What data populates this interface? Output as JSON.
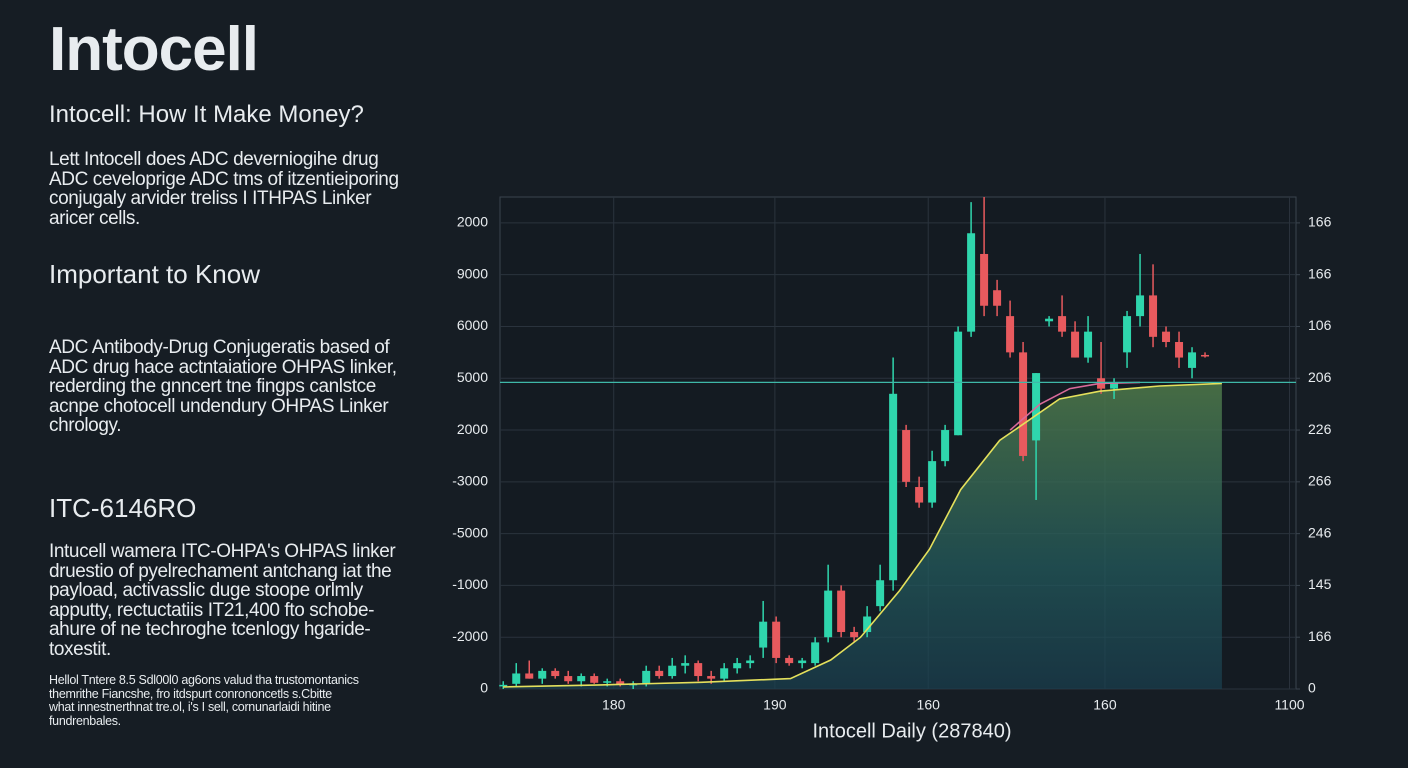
{
  "page": {
    "title": "Intocell",
    "subtitle": "Intocell: How  It Make Money?",
    "intro": [
      "Lett Intocell does ADC deverniogihe drug",
      "ADC ceveloprige ADC tms of itzentieiporing",
      "conjugaly arvider treliss I ITHPAS Linker",
      "aricer cells."
    ],
    "section1": {
      "heading": "Important to Know",
      "lines": [
        "ADC Antibody-Drug Conjugeratis based of",
        "ADC drug hace actntaiatiore OHPAS linker,",
        "rederding the gnncert tne fingps canlstce",
        "acnpe chotocell undendury OHPAS Linker",
        "chrology."
      ]
    },
    "section2": {
      "heading": "ITC-6146RO",
      "lines": [
        "Intucell wamera ITC-OHPA's OHPAS linker",
        "druestio of pyelrechament antchang iat the",
        "payload, activasslic duge stoope orlmly",
        "apputty, rectuctatiis IT21,400 fto schobe-",
        "ahure of ne techroghe tcenlogy hgaride-",
        "toxestit."
      ]
    },
    "footnote": [
      "Hellol Tntere 8.5 Sdl00l0 ag6ons valud tha trustomontanics",
      "themrithe Fiancshe, fro itdspurt conrononcetls s.Cbitte",
      "what innestnerthnat tre.ol, i's I sell, cornunarlaidi hitine",
      "fundrenbales."
    ]
  },
  "chart_data": {
    "type": "candlestick",
    "x_label": "Intocell Daily (287840)",
    "up_color": "#2fd6ad",
    "down_color": "#e85a5e",
    "x": [
      0,
      1,
      2,
      3,
      4,
      5,
      6,
      7,
      8,
      9,
      10,
      11,
      12,
      13,
      14,
      15,
      16,
      17,
      18,
      19,
      20,
      21,
      22,
      23,
      24,
      25,
      26,
      27,
      28,
      29,
      30,
      31,
      32,
      33,
      34,
      35,
      36,
      37,
      38,
      39,
      40,
      41,
      42,
      43,
      44,
      45,
      46,
      47,
      48,
      49,
      50,
      51,
      52,
      53,
      54
    ],
    "open": [
      0.05,
      0.1,
      0.3,
      0.2,
      0.35,
      0.25,
      0.15,
      0.25,
      0.12,
      0.15,
      0.08,
      0.1,
      0.35,
      0.25,
      0.45,
      0.5,
      0.25,
      0.2,
      0.4,
      0.5,
      0.8,
      1.3,
      0.6,
      0.5,
      0.5,
      1.0,
      1.9,
      1.1,
      1.1,
      1.6,
      2.1,
      5.0,
      3.9,
      3.6,
      4.4,
      4.9,
      6.9,
      8.4,
      7.7,
      7.2,
      6.5,
      4.8,
      7.1,
      7.2,
      6.9,
      6.4,
      6.0,
      5.8,
      6.5,
      7.2,
      7.6,
      6.9,
      6.7,
      6.2,
      6.45
    ],
    "high": [
      0.15,
      0.5,
      0.55,
      0.4,
      0.4,
      0.35,
      0.3,
      0.3,
      0.2,
      0.2,
      0.15,
      0.45,
      0.45,
      0.6,
      0.65,
      0.55,
      0.35,
      0.5,
      0.6,
      0.65,
      1.7,
      1.4,
      0.65,
      0.6,
      1.0,
      2.4,
      2.0,
      1.2,
      1.6,
      2.4,
      6.4,
      5.1,
      4.1,
      4.6,
      5.1,
      7.0,
      9.4,
      9.5,
      7.9,
      7.5,
      6.7,
      6.1,
      7.2,
      7.6,
      7.1,
      7.2,
      6.7,
      6.0,
      7.3,
      8.4,
      8.2,
      7.0,
      6.9,
      6.6,
      6.5
    ],
    "low": [
      0,
      0.05,
      0.2,
      0.1,
      0.2,
      0.1,
      0.05,
      0.1,
      0.05,
      0.05,
      0,
      0.05,
      0.2,
      0.2,
      0.3,
      0.15,
      0.1,
      0.15,
      0.3,
      0.4,
      0.6,
      0.5,
      0.45,
      0.4,
      0.45,
      0.9,
      1.0,
      0.9,
      1.0,
      1.5,
      1.9,
      3.9,
      3.5,
      3.5,
      4.3,
      4.9,
      6.8,
      7.2,
      7.2,
      6.4,
      4.4,
      3.65,
      7.0,
      6.8,
      6.4,
      6.3,
      5.7,
      5.6,
      6.2,
      7.0,
      6.6,
      6.6,
      6.2,
      6.0,
      6.4
    ],
    "close": [
      0.08,
      0.3,
      0.2,
      0.35,
      0.25,
      0.15,
      0.25,
      0.12,
      0.15,
      0.08,
      0.1,
      0.35,
      0.25,
      0.45,
      0.5,
      0.25,
      0.2,
      0.4,
      0.5,
      0.55,
      1.3,
      0.6,
      0.5,
      0.55,
      0.9,
      1.9,
      1.1,
      1.0,
      1.4,
      2.1,
      5.7,
      4.0,
      3.6,
      4.4,
      5.0,
      6.9,
      8.8,
      7.4,
      7.4,
      6.5,
      4.5,
      6.1,
      7.15,
      6.9,
      6.4,
      6.9,
      5.8,
      5.9,
      7.2,
      7.6,
      6.8,
      6.7,
      6.4,
      6.5,
      6.42
    ],
    "lines": [
      {
        "color": "#e4e05c",
        "area": true,
        "x": [
          0,
          7.5,
          15.2,
          22.1,
          25.2,
          27.5,
          30.5,
          32.8,
          35.2,
          38.2,
          40.5,
          42.8,
          45.9,
          50.5,
          55.3
        ],
        "values": [
          0.04,
          0.08,
          0.13,
          0.2,
          0.56,
          1.0,
          1.9,
          2.7,
          3.85,
          4.8,
          5.2,
          5.6,
          5.75,
          5.85,
          5.9
        ]
      },
      {
        "color": "#d96a9a",
        "area": false,
        "x": [
          39,
          41.3,
          43.6,
          45.9,
          49
        ],
        "values": [
          5.0,
          5.5,
          5.8,
          5.9,
          5.92
        ]
      }
    ],
    "hline": 5.92,
    "hline_color": "#3fb8a8",
    "grid": true,
    "xlim": [
      -0.25,
      61
    ],
    "xticks": [
      {
        "value": 8.5,
        "label": "180"
      },
      {
        "value": 20.9,
        "label": "190"
      },
      {
        "value": 32.7,
        "label": "160"
      },
      {
        "value": 46.3,
        "label": "160"
      },
      {
        "value": 60.5,
        "label": "1100"
      }
    ],
    "ylim": [
      0,
      9.5
    ],
    "yticks": [
      {
        "value": 9,
        "label": "2000"
      },
      {
        "value": 8,
        "label": "9000"
      },
      {
        "value": 7,
        "label": "6000"
      },
      {
        "value": 6,
        "label": "5000"
      },
      {
        "value": 5,
        "label": "2000"
      },
      {
        "value": 4,
        "label": "-3000"
      },
      {
        "value": 3,
        "label": "-5000"
      },
      {
        "value": 2,
        "label": "-1000"
      },
      {
        "value": 1,
        "label": "-2000"
      },
      {
        "value": 0,
        "label": "0"
      }
    ],
    "y2lim": [
      0,
      9.5
    ],
    "y2ticks": [
      {
        "value": 9,
        "label": "166"
      },
      {
        "value": 8,
        "label": "166"
      },
      {
        "value": 7,
        "label": "106"
      },
      {
        "value": 6,
        "label": "206"
      },
      {
        "value": 5,
        "label": "226"
      },
      {
        "value": 4,
        "label": "266"
      },
      {
        "value": 3,
        "label": "246"
      },
      {
        "value": 2,
        "label": "145"
      },
      {
        "value": 1,
        "label": "166"
      },
      {
        "value": 0,
        "label": "0"
      }
    ]
  }
}
